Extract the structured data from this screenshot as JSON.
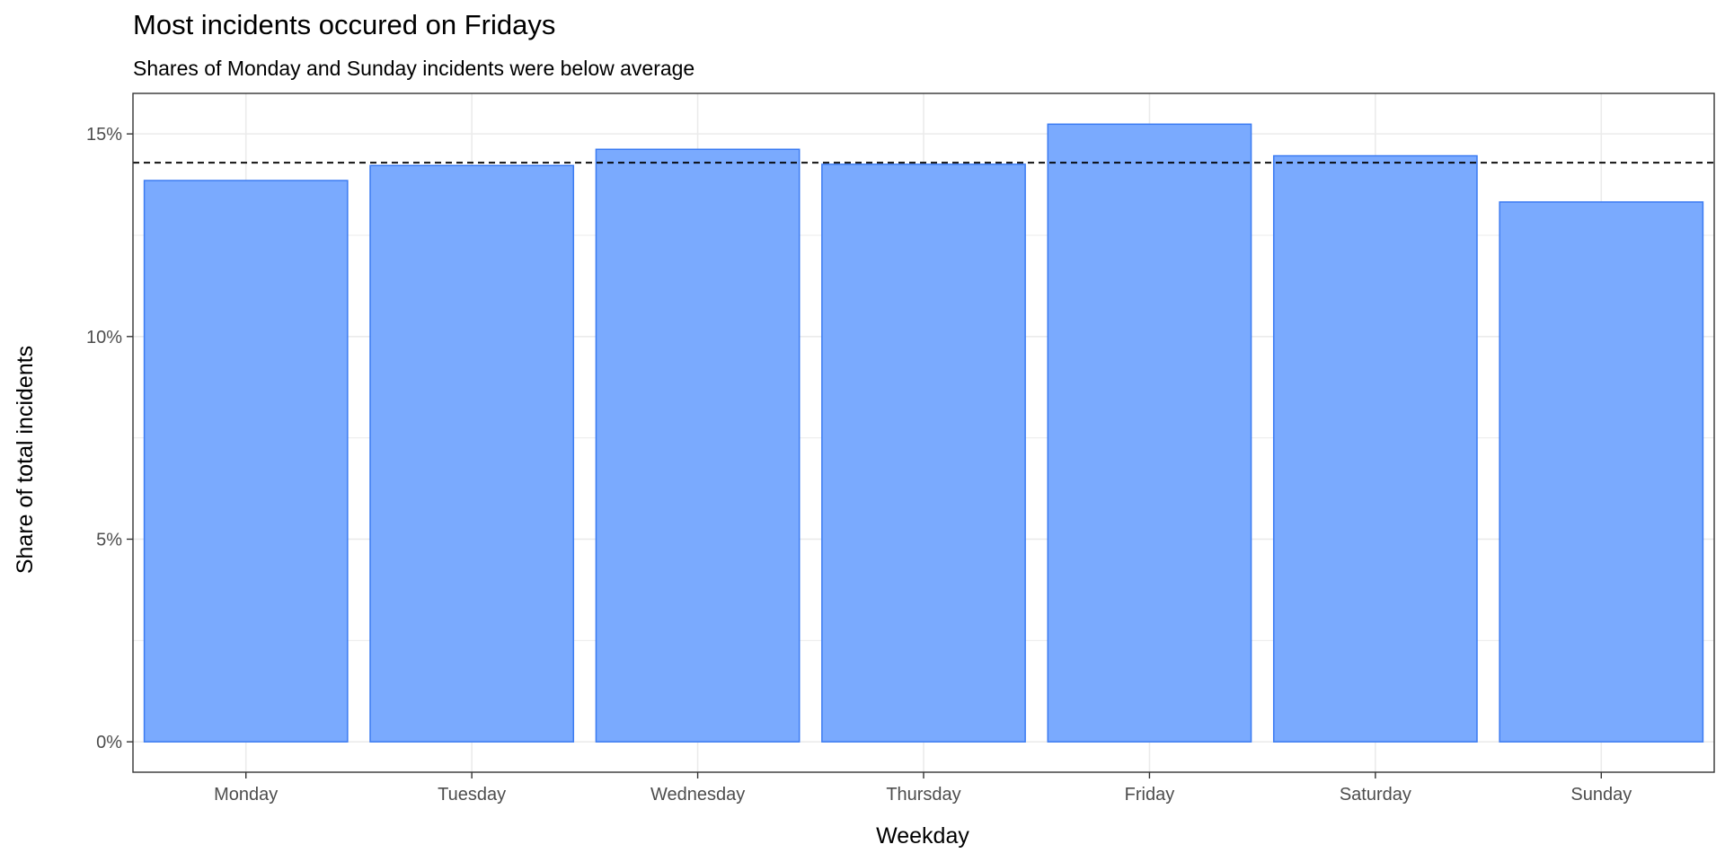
{
  "chart_data": {
    "type": "bar",
    "title": "Most incidents occured on Fridays",
    "subtitle": "Shares of Monday and Sunday incidents were below average",
    "xlabel": "Weekday",
    "ylabel": "Share of total incidents",
    "categories": [
      "Monday",
      "Tuesday",
      "Wednesday",
      "Thursday",
      "Friday",
      "Saturday",
      "Sunday"
    ],
    "values": [
      13.85,
      14.22,
      14.62,
      14.25,
      15.24,
      14.46,
      13.32
    ],
    "y_ticks": [
      0,
      5,
      10,
      15
    ],
    "y_tick_labels": [
      "0%",
      "5%",
      "10%",
      "15%"
    ],
    "ylim": [
      -0.75,
      16.0
    ],
    "reference_line": {
      "value": 14.29,
      "style": "dashed"
    },
    "grid": true,
    "legend": "none",
    "colors": {
      "bar_fill": "#7aaafe",
      "bar_stroke": "#3b7bf2",
      "grid": "#ebebeb",
      "reference_line": "#000000",
      "panel_border": "#333333"
    }
  }
}
